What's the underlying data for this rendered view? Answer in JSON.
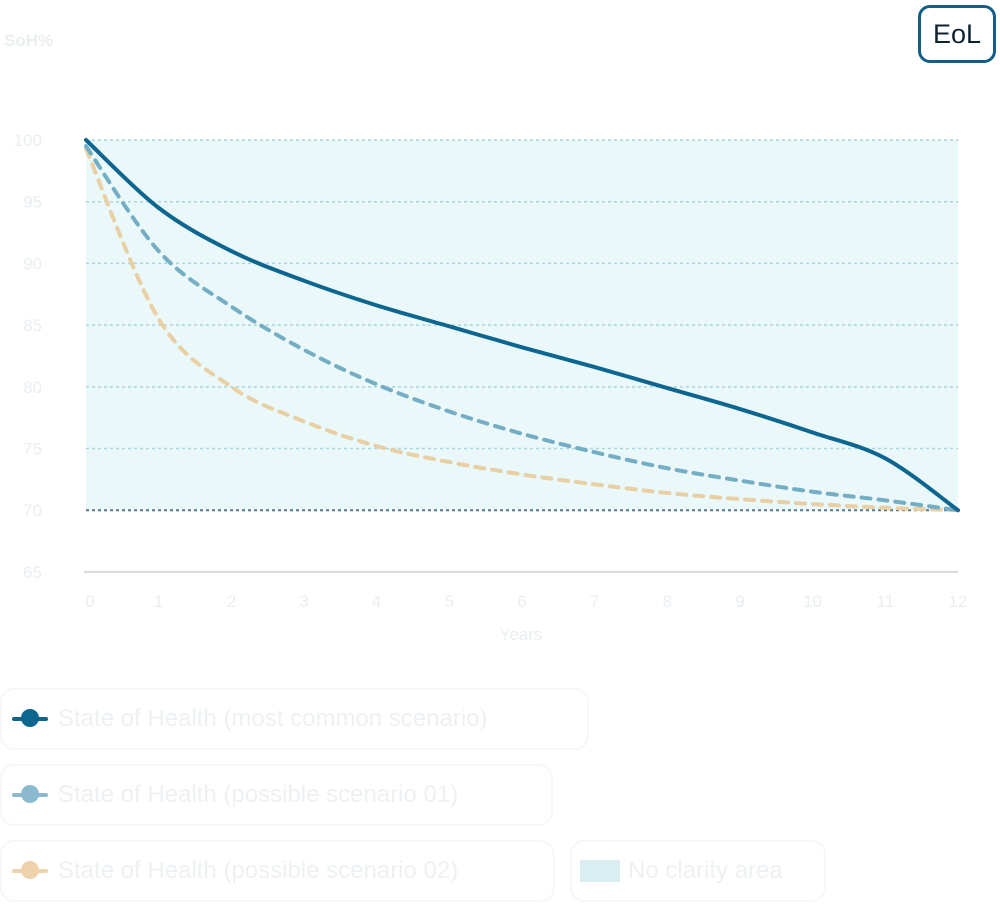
{
  "badge": {
    "label": "EoL"
  },
  "chart_data": {
    "type": "line",
    "ylabel": "SoH%",
    "xlabel": "Years",
    "x": [
      0,
      1,
      2,
      3,
      4,
      5,
      6,
      7,
      8,
      9,
      10,
      11,
      12
    ],
    "x_ticks": [
      "0",
      "1",
      "2",
      "3",
      "4",
      "5",
      "6",
      "7",
      "8",
      "9",
      "10",
      "11",
      "12"
    ],
    "y_ticks": [
      "100",
      "95",
      "90",
      "85",
      "80",
      "75",
      "70",
      "65"
    ],
    "xlim": [
      0,
      12
    ],
    "ylim": [
      65,
      100
    ],
    "grid": true,
    "eol_line": 70,
    "no_clarity_area": {
      "x": [
        0,
        12
      ],
      "y": [
        70,
        100
      ]
    },
    "series": [
      {
        "name": "State of Health (most common scenario)",
        "color": "#0d6690",
        "dashed": false,
        "values": [
          100.0,
          94.5,
          91.0,
          88.6,
          86.6,
          84.9,
          83.2,
          81.6,
          79.9,
          78.2,
          76.3,
          74.2,
          70.0
        ]
      },
      {
        "name": "State of Health (possible scenario 01)",
        "color": "#73aec5",
        "dashed": true,
        "values": [
          99.5,
          91.0,
          86.5,
          83.0,
          80.2,
          78.0,
          76.2,
          74.7,
          73.4,
          72.4,
          71.5,
          70.8,
          70.0
        ]
      },
      {
        "name": "State of Health (possible scenario 02)",
        "color": "#e8cfa4",
        "dashed": true,
        "values": [
          99.3,
          85.5,
          80.0,
          77.2,
          75.2,
          73.9,
          72.9,
          72.1,
          71.4,
          70.9,
          70.5,
          70.2,
          70.0
        ]
      }
    ]
  },
  "legend": {
    "items": [
      {
        "label": "State of Health (most common scenario)",
        "color": "#0d6690"
      },
      {
        "label": "State of Health (possible scenario 01)",
        "color": "#8bbad0"
      },
      {
        "label": "State of Health (possible scenario 02)",
        "color": "#edd2ac"
      },
      {
        "label": "No clarity area",
        "color": "#d8eef1"
      }
    ]
  }
}
